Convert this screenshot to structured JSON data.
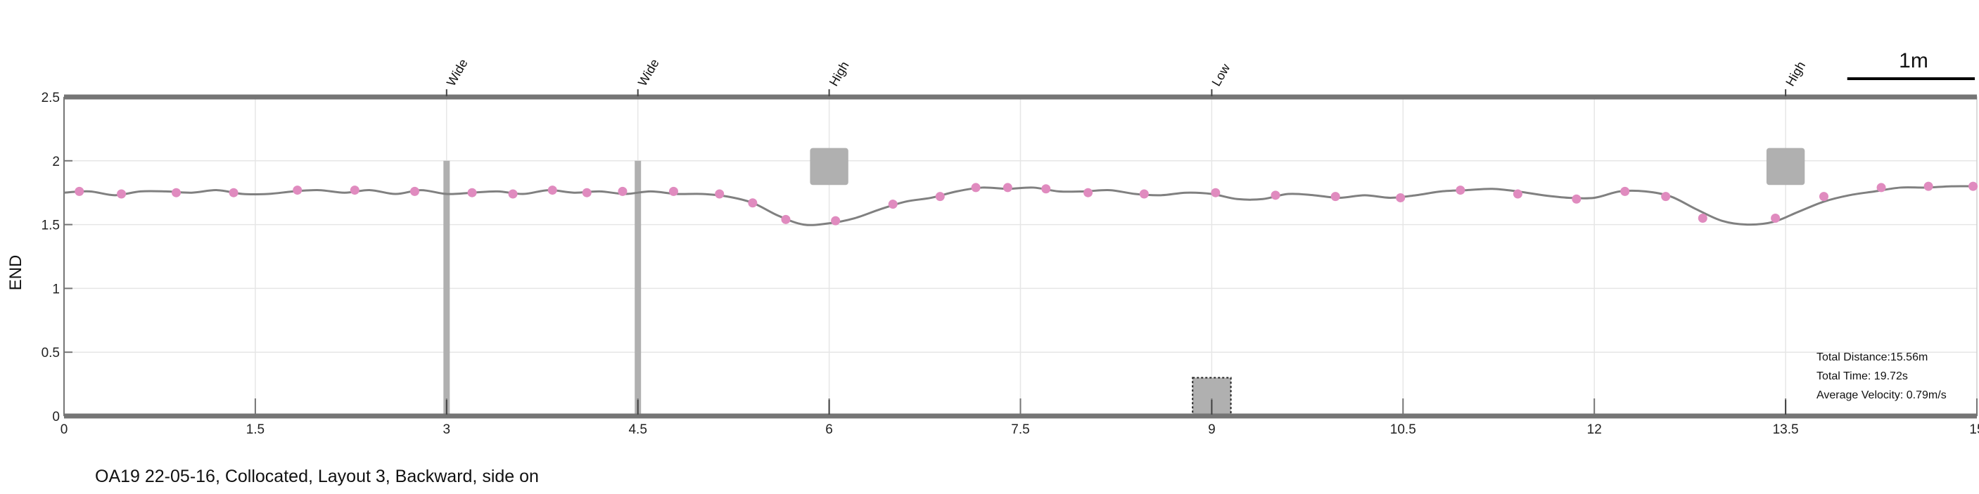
{
  "caption": "OA19 22-05-16, Collocated, Layout 3, Backward, side on",
  "chart_data": {
    "type": "line",
    "title": "",
    "xlabel": "",
    "ylabel": "END",
    "xlim": [
      0,
      15
    ],
    "ylim": [
      0,
      2.5
    ],
    "grid": true,
    "xticks": [
      0,
      1.5,
      3,
      4.5,
      6,
      7.5,
      9,
      10.5,
      12,
      13.5,
      15
    ],
    "yticks": [
      0,
      0.5,
      1,
      1.5,
      2,
      2.5
    ],
    "xtick_labels": [
      "0",
      "1.5",
      "3",
      "4.5",
      "6",
      "7.5",
      "9",
      "10.5",
      "12",
      "13.5",
      "15"
    ],
    "ytick_labels": [
      "0",
      "0.5",
      "1",
      "1.5",
      "2",
      "2.5"
    ],
    "line_color": "#808080",
    "marker_color": "#e08bbf",
    "obstacle_color": "#b0b0b0",
    "line": {
      "x": [
        0,
        0.2,
        0.4,
        0.6,
        0.8,
        1.0,
        1.2,
        1.4,
        1.6,
        1.8,
        2.0,
        2.2,
        2.4,
        2.6,
        2.8,
        3.0,
        3.2,
        3.4,
        3.6,
        3.8,
        4.0,
        4.2,
        4.4,
        4.6,
        4.8,
        5.0,
        5.2,
        5.4,
        5.6,
        5.8,
        6.0,
        6.2,
        6.4,
        6.6,
        6.8,
        7.0,
        7.2,
        7.4,
        7.6,
        7.8,
        8.0,
        8.2,
        8.4,
        8.6,
        8.8,
        9.0,
        9.2,
        9.4,
        9.6,
        9.8,
        10.0,
        10.2,
        10.4,
        10.6,
        10.8,
        11.0,
        11.2,
        11.4,
        11.6,
        11.8,
        12.0,
        12.2,
        12.4,
        12.6,
        12.8,
        13.0,
        13.2,
        13.4,
        13.6,
        13.8,
        14.0,
        14.2,
        14.4,
        14.6,
        14.8,
        15.0
      ],
      "y": [
        1.75,
        1.76,
        1.73,
        1.76,
        1.76,
        1.75,
        1.77,
        1.74,
        1.74,
        1.76,
        1.77,
        1.75,
        1.77,
        1.74,
        1.77,
        1.74,
        1.75,
        1.76,
        1.74,
        1.77,
        1.75,
        1.76,
        1.74,
        1.76,
        1.74,
        1.74,
        1.72,
        1.67,
        1.57,
        1.5,
        1.51,
        1.55,
        1.62,
        1.68,
        1.71,
        1.76,
        1.79,
        1.78,
        1.79,
        1.76,
        1.76,
        1.77,
        1.74,
        1.73,
        1.75,
        1.74,
        1.7,
        1.7,
        1.74,
        1.73,
        1.71,
        1.73,
        1.71,
        1.73,
        1.76,
        1.77,
        1.78,
        1.76,
        1.73,
        1.71,
        1.71,
        1.76,
        1.76,
        1.72,
        1.62,
        1.53,
        1.5,
        1.52,
        1.6,
        1.68,
        1.73,
        1.76,
        1.79,
        1.79,
        1.8,
        1.8
      ]
    },
    "markers": {
      "x": [
        0.12,
        0.45,
        0.88,
        1.33,
        1.83,
        2.28,
        2.75,
        3.2,
        3.52,
        3.83,
        4.1,
        4.38,
        4.78,
        5.14,
        5.4,
        5.66,
        6.05,
        6.5,
        6.87,
        7.15,
        7.4,
        7.7,
        8.03,
        8.47,
        9.03,
        9.5,
        9.97,
        10.48,
        10.95,
        11.4,
        11.86,
        12.24,
        12.56,
        12.85,
        13.42,
        13.8,
        14.25,
        14.62,
        14.97
      ],
      "y": [
        1.76,
        1.74,
        1.75,
        1.75,
        1.77,
        1.77,
        1.76,
        1.75,
        1.74,
        1.77,
        1.75,
        1.76,
        1.76,
        1.74,
        1.67,
        1.54,
        1.53,
        1.66,
        1.72,
        1.79,
        1.79,
        1.78,
        1.75,
        1.74,
        1.75,
        1.73,
        1.72,
        1.71,
        1.77,
        1.74,
        1.7,
        1.76,
        1.72,
        1.55,
        1.55,
        1.72,
        1.79,
        1.8,
        1.8
      ]
    },
    "obstacles": [
      {
        "label": "Wide",
        "kind": "pole",
        "x": 3.0,
        "y0": 0,
        "y1": 2.0
      },
      {
        "label": "Wide",
        "kind": "pole",
        "x": 4.5,
        "y0": 0,
        "y1": 2.0
      },
      {
        "label": "High",
        "kind": "box",
        "x0": 5.85,
        "x1": 6.15,
        "y0": 1.81,
        "y1": 2.1
      },
      {
        "label": "Low",
        "kind": "box",
        "x0": 8.85,
        "x1": 9.15,
        "y0": 0,
        "y1": 0.3
      },
      {
        "label": "High",
        "kind": "box",
        "x0": 13.35,
        "x1": 13.65,
        "y0": 1.81,
        "y1": 2.1
      }
    ],
    "annotation_marks": [
      3.0,
      4.5,
      6.0,
      9.0,
      13.5
    ],
    "stats": [
      "Total Distance:15.56m",
      "Total Time: 19.72s",
      "Average Velocity: 0.79m/s"
    ],
    "scale_bar": {
      "label": "1m",
      "length": 1
    }
  }
}
